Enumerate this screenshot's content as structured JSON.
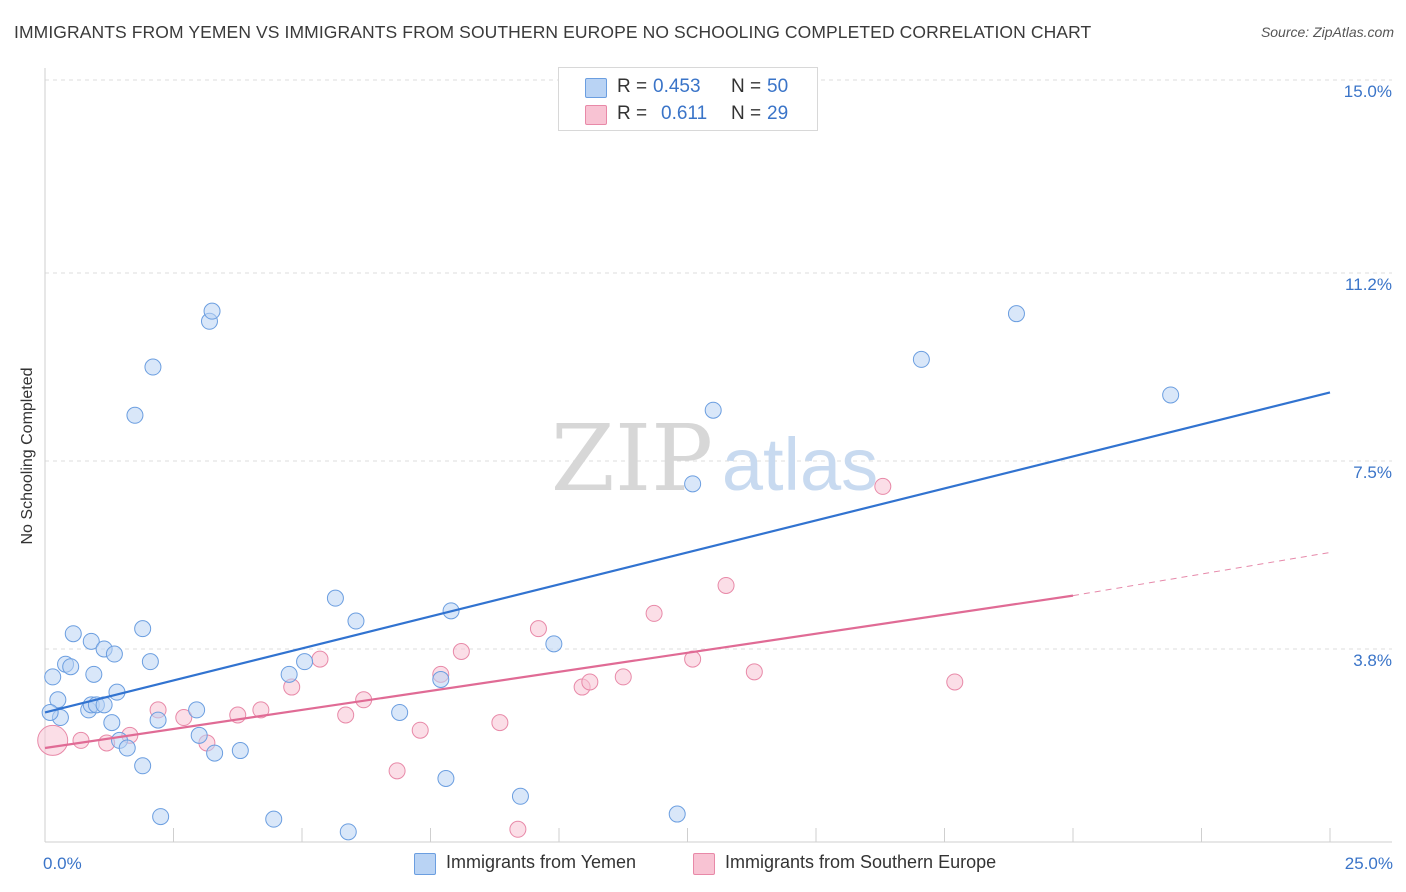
{
  "title": "IMMIGRANTS FROM YEMEN VS IMMIGRANTS FROM SOUTHERN EUROPE NO SCHOOLING COMPLETED CORRELATION CHART",
  "source": "Source: ZipAtlas.com",
  "watermark": {
    "zip": "ZIP",
    "atlas": "atlas"
  },
  "legend": {
    "yemen": {
      "r_label": "R =",
      "r_value": "0.453",
      "n_label": "N =",
      "n_value": "50"
    },
    "southern_europe": {
      "r_label": "R =",
      "r_value": "0.611",
      "n_label": "N =",
      "n_value": "29"
    }
  },
  "bottom_legend": {
    "yemen": "Immigrants from Yemen",
    "southern_europe": "Immigrants from Southern Europe"
  },
  "colors": {
    "blue_fill": "#b9d3f4",
    "blue_stroke": "#6b9ee0",
    "blue_line": "#3173d0",
    "pink_fill": "#f8c3d3",
    "pink_stroke": "#e889a8",
    "pink_line": "#e06b95",
    "tick_text": "#3a74c8"
  },
  "chart_data": {
    "type": "scatter",
    "title": "IMMIGRANTS FROM YEMEN VS IMMIGRANTS FROM SOUTHERN EUROPE NO SCHOOLING COMPLETED CORRELATION CHART",
    "xlabel": "",
    "ylabel": "No Schooling Completed",
    "xlim": [
      0,
      25
    ],
    "ylim": [
      0,
      15
    ],
    "x_tick_labels": [
      "0.0%",
      "25.0%"
    ],
    "y_ticks": [
      3.8,
      7.5,
      11.2,
      15.0
    ],
    "y_tick_labels": [
      "3.8%",
      "7.5%",
      "11.2%",
      "15.0%"
    ],
    "grid": true,
    "legend_position": "top-center",
    "series": [
      {
        "name": "Immigrants from Yemen",
        "r": 0.453,
        "n": 50,
        "trendline": {
          "x": [
            0,
            25
          ],
          "y": [
            2.55,
            8.85
          ]
        },
        "points": [
          [
            0.15,
            3.25
          ],
          [
            0.25,
            2.8
          ],
          [
            0.3,
            2.45
          ],
          [
            0.4,
            3.5
          ],
          [
            0.5,
            3.45
          ],
          [
            0.55,
            4.1
          ],
          [
            0.85,
            2.6
          ],
          [
            0.9,
            2.7
          ],
          [
            0.9,
            3.95
          ],
          [
            0.95,
            3.3
          ],
          [
            1.0,
            2.7
          ],
          [
            1.15,
            2.7
          ],
          [
            1.15,
            3.8
          ],
          [
            1.3,
            2.35
          ],
          [
            1.35,
            3.7
          ],
          [
            1.4,
            2.95
          ],
          [
            1.45,
            2.0
          ],
          [
            1.6,
            1.85
          ],
          [
            1.75,
            8.4
          ],
          [
            1.9,
            1.5
          ],
          [
            1.9,
            4.2
          ],
          [
            2.05,
            3.55
          ],
          [
            2.1,
            9.35
          ],
          [
            2.2,
            2.4
          ],
          [
            2.25,
            0.5
          ],
          [
            2.95,
            2.6
          ],
          [
            3.0,
            2.1
          ],
          [
            3.2,
            10.25
          ],
          [
            3.25,
            10.45
          ],
          [
            3.3,
            1.75
          ],
          [
            3.8,
            1.8
          ],
          [
            4.45,
            0.45
          ],
          [
            4.75,
            3.3
          ],
          [
            5.05,
            3.55
          ],
          [
            5.65,
            4.8
          ],
          [
            5.9,
            0.2
          ],
          [
            6.05,
            4.35
          ],
          [
            6.9,
            2.55
          ],
          [
            7.7,
            3.2
          ],
          [
            7.8,
            1.25
          ],
          [
            7.9,
            4.55
          ],
          [
            9.25,
            0.9
          ],
          [
            9.9,
            3.9
          ],
          [
            12.3,
            0.55
          ],
          [
            12.6,
            7.05
          ],
          [
            13.0,
            8.5
          ],
          [
            17.05,
            9.5
          ],
          [
            18.9,
            10.4
          ],
          [
            21.9,
            8.8
          ],
          [
            0.1,
            2.55
          ]
        ]
      },
      {
        "name": "Immigrants from Southern Europe",
        "r": 0.611,
        "n": 29,
        "trendline": {
          "x": [
            0,
            20
          ],
          "y": [
            1.85,
            4.85
          ],
          "dashed_extension_to": {
            "x": 25,
            "y": 5.7
          }
        },
        "points": [
          [
            0.15,
            2.0
          ],
          [
            0.7,
            2.0
          ],
          [
            1.2,
            1.95
          ],
          [
            1.65,
            2.1
          ],
          [
            2.2,
            2.6
          ],
          [
            2.7,
            2.45
          ],
          [
            3.15,
            1.95
          ],
          [
            3.75,
            2.5
          ],
          [
            4.2,
            2.6
          ],
          [
            4.8,
            3.05
          ],
          [
            5.35,
            3.6
          ],
          [
            5.85,
            2.5
          ],
          [
            6.2,
            2.8
          ],
          [
            6.85,
            1.4
          ],
          [
            7.3,
            2.2
          ],
          [
            7.7,
            3.3
          ],
          [
            8.1,
            3.75
          ],
          [
            8.85,
            2.35
          ],
          [
            9.2,
            0.25
          ],
          [
            9.6,
            4.2
          ],
          [
            10.45,
            3.05
          ],
          [
            10.6,
            3.15
          ],
          [
            11.25,
            3.25
          ],
          [
            11.85,
            4.5
          ],
          [
            12.6,
            3.6
          ],
          [
            13.25,
            5.05
          ],
          [
            13.8,
            3.35
          ],
          [
            16.3,
            7.0
          ],
          [
            17.7,
            3.15
          ]
        ]
      }
    ]
  }
}
